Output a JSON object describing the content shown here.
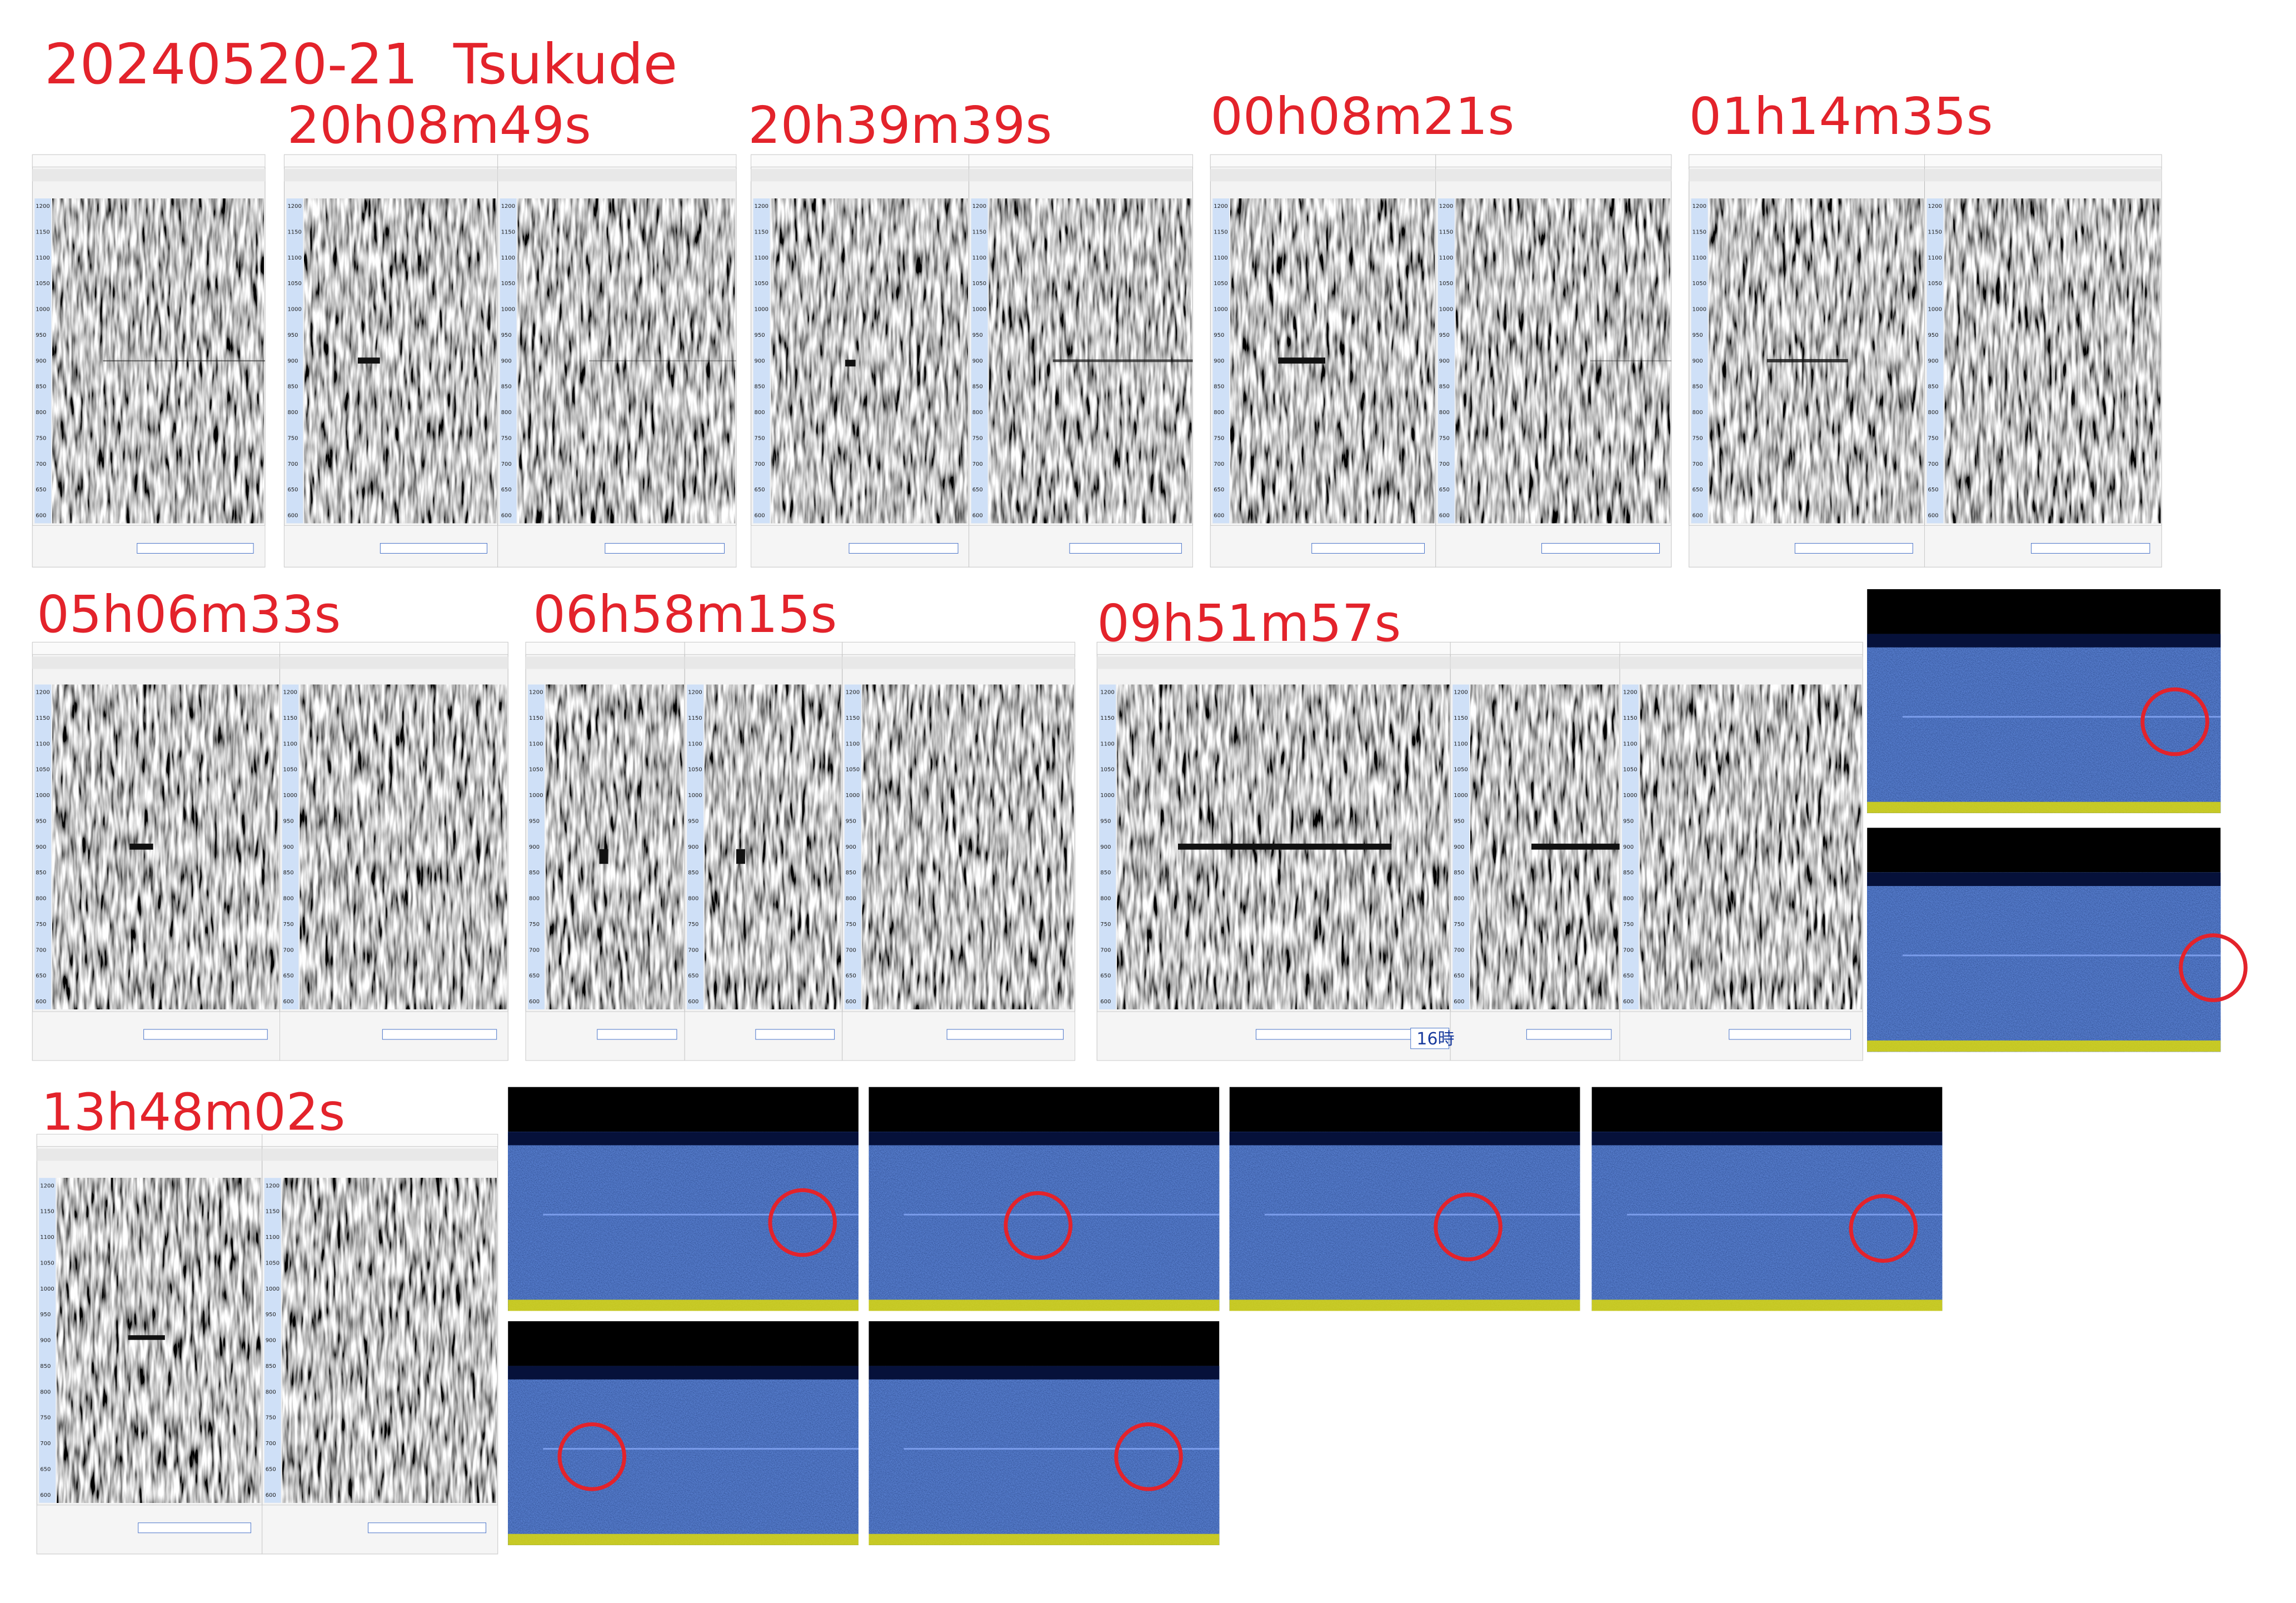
{
  "header": {
    "title": "20240520-21  Tsukude"
  },
  "captures": [
    {
      "time": "20h08m49s"
    },
    {
      "time": "20h39m39s"
    },
    {
      "time": "00h08m21s"
    },
    {
      "time": "01h14m35s"
    },
    {
      "time": "05h06m33s"
    },
    {
      "time": "06h58m15s"
    },
    {
      "time": "09h51m57s"
    },
    {
      "time": "13h48m02s"
    }
  ],
  "axis_ticks": [
    "1200",
    "1150",
    "1100",
    "1050",
    "1000",
    "950",
    "900",
    "850",
    "800",
    "750",
    "700",
    "650",
    "600"
  ],
  "note": "16時"
}
